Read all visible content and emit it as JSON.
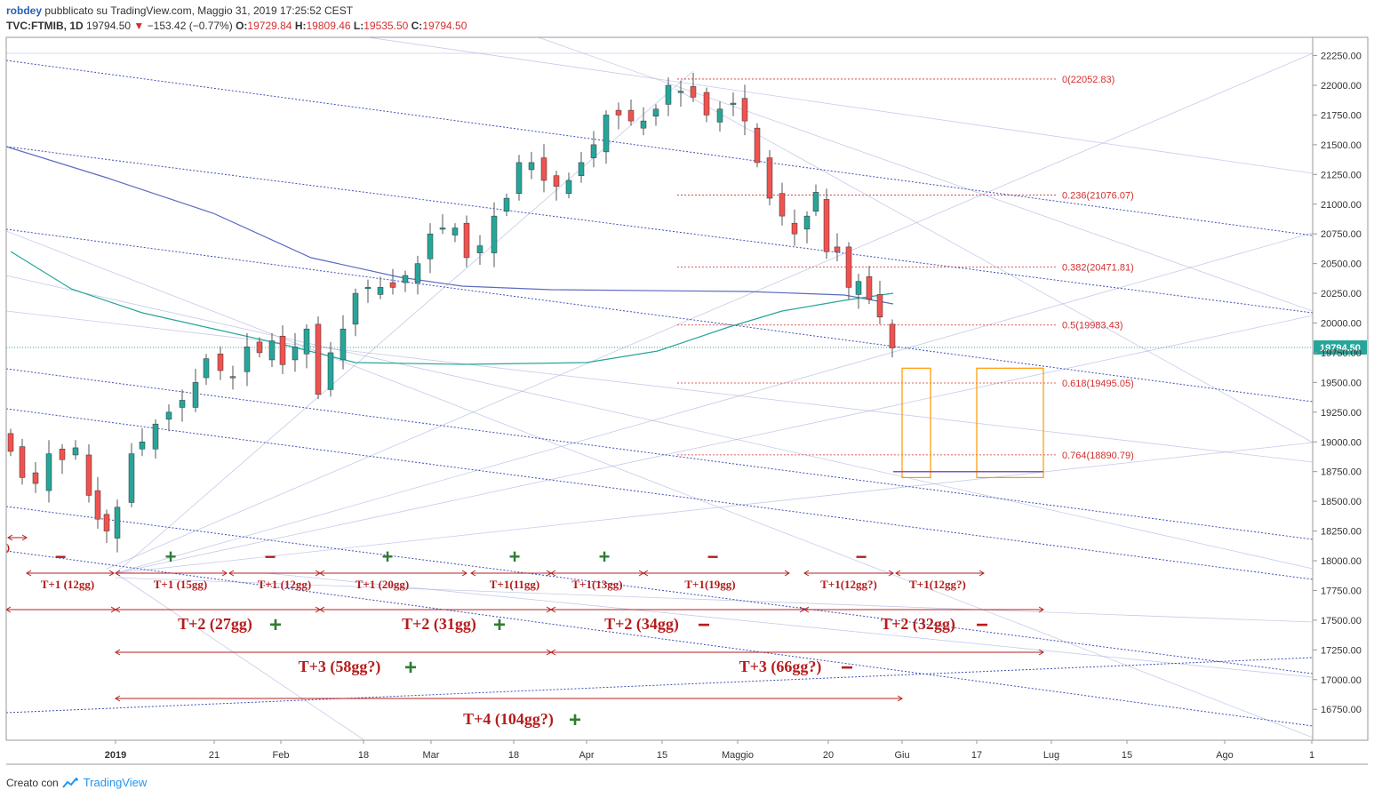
{
  "header": {
    "user": "robdey",
    "published": "pubblicato su TradingView.com, Maggio 31, 2019 17:25:52 CEST",
    "symbol": "TVC:FTMIB, 1D",
    "last": "19794.50",
    "change_arrow": "▼",
    "change": "−153.42 (−0.77%)",
    "o_label": "O:",
    "o_value": "19729.84",
    "h_label": "H:",
    "h_value": "19809.46",
    "l_label": "L:",
    "l_value": "19535.50",
    "c_label": "C:",
    "c_value": "19794.50"
  },
  "footer": {
    "created": "Creato con",
    "brand": "TradingView",
    "logo_icon": "tradingview-logo-icon"
  },
  "chart_data": {
    "type": "candlestick",
    "symbol": "TVC:FTMIB",
    "timeframe": "1D",
    "ylim": [
      16500,
      22400
    ],
    "y_ticks": [
      16750,
      17000,
      17250,
      17500,
      17750,
      18000,
      18250,
      18500,
      18750,
      19000,
      19250,
      19500,
      19750,
      20000,
      20250,
      20500,
      20750,
      21000,
      21250,
      21500,
      21750,
      22000,
      22250
    ],
    "x_ticks": [
      "2019",
      "21",
      "Feb",
      "18",
      "Mar",
      "18",
      "Apr",
      "15",
      "Maggio",
      "20",
      "Giu",
      "17",
      "Lug",
      "15",
      "Ago",
      "1"
    ],
    "last_price_label": "19794.50",
    "colors": {
      "up": "#26a69a",
      "down": "#ef5350",
      "fib": "#d32f2f",
      "channel": "#3f51b5",
      "orange": "#ff9800",
      "annotation": "#b71c1c",
      "plus": "#2e7d32"
    },
    "fibonacci": [
      {
        "label": "0(22052.83)",
        "value": 22052.83
      },
      {
        "label": "0.236(21076.07)",
        "value": 21076.07
      },
      {
        "label": "0.382(20471.81)",
        "value": 20471.81
      },
      {
        "label": "0.5(19983.43)",
        "value": 19983.43
      },
      {
        "label": "0.618(19495.05)",
        "value": 19495.05
      },
      {
        "label": "0.764(18890.79)",
        "value": 18890.79
      }
    ],
    "cycles_t1": [
      "T+1 (12gg)",
      "T+1 (15gg)",
      "T+1 (12gg)",
      "T+1 (20gg)",
      "T+1(11gg)",
      "T+1(13gg)",
      "T+1(19gg)",
      "T+1(12gg?)",
      "T+1(12gg?)"
    ],
    "cycles_t1_signs": [
      "-",
      "+",
      "-",
      "+",
      "+",
      "+",
      "-",
      "-"
    ],
    "cycles_t2": [
      "T+2 (27gg)",
      "T+2 (31gg)",
      "T+2 (34gg)",
      "T+2 (32gg)"
    ],
    "cycles_t2_signs": [
      "+",
      "+",
      "-",
      "-"
    ],
    "cycles_t3": [
      "T+3 (58gg?)",
      "T+3 (66gg?)"
    ],
    "cycles_t3_signs": [
      "+",
      "-"
    ],
    "cycles_t4": [
      "T+4 (104gg?)"
    ],
    "cycles_t4_signs": [
      "+"
    ],
    "partial_label": ")"
  }
}
